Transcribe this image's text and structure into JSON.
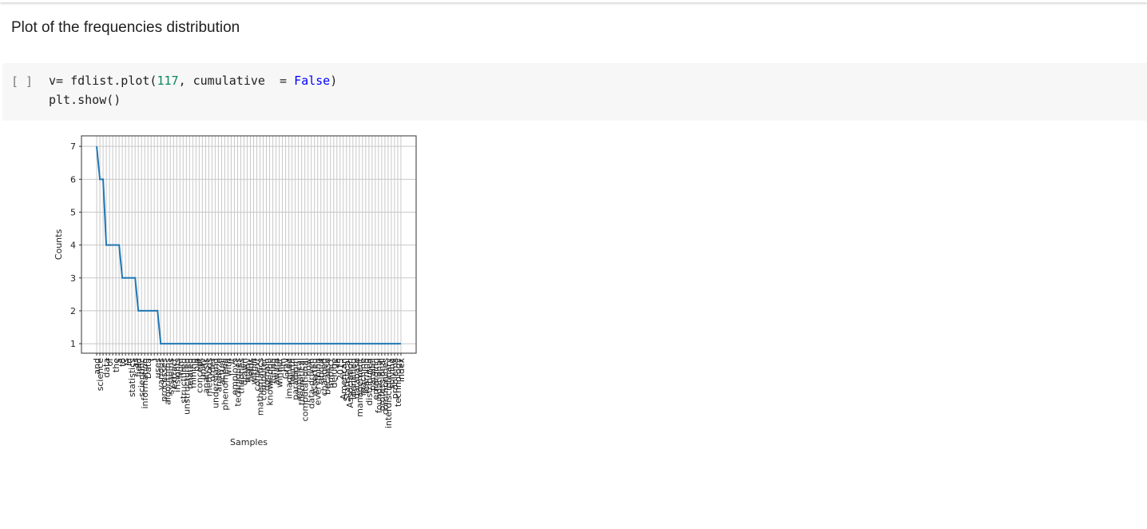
{
  "text_cell": "Plot of the frequencies distribution",
  "code_cell": {
    "prompt": "[ ]",
    "line1": {
      "a": "v= fdlist.plot(",
      "num": "117",
      "b": ", cumulative  = ",
      "kw": "False",
      "c": ")"
    },
    "line2": "plt.show()"
  },
  "chart_data": {
    "type": "line",
    "xlabel": "Samples",
    "ylabel": "Counts",
    "color": "#1f77b4",
    "grid": true,
    "categories": [
      "and",
      "science",
      ",",
      "data",
      "of",
      ".",
      "the",
      "a",
      "to",
      "is",
      "in",
      "statistics",
      "as",
      "field",
      "scientific",
      "information",
      "Data",
      "(",
      ")",
      "uses",
      "various",
      "processes",
      "algorithms",
      "systems",
      "extract",
      "insights",
      "from",
      "structured",
      "unstructured",
      "related",
      "mining",
      "big",
      "concept",
      "unify",
      "analysis",
      "methods",
      "order",
      "understand",
      "analyze",
      "actual",
      "phenomena",
      "with",
      "It",
      "employs",
      "techniques",
      "theories",
      "drawn",
      "many",
      "fields",
      "within",
      "context",
      "mathematics",
      "computer",
      "domain",
      "knowledge",
      "Turing",
      "award",
      "winner",
      "Jim",
      "Gray",
      "imagined",
      "fourth",
      "paradigm",
      "empirical",
      "theoretical",
      "computational",
      "now",
      "data-driven",
      "asserted",
      "everything",
      "about",
      "changed",
      "because",
      "impact",
      "deluge",
      "In",
      "2015",
      "American",
      "Statistical",
      "Association",
      "identified",
      "database",
      "management",
      "machine",
      "learning",
      "distributed",
      "parallel",
      "emerging",
      "foundational",
      "professional",
      "communities",
      "interdisciplinary",
      "solving",
      "problems",
      "technology",
      "index"
    ],
    "values": [
      7,
      6,
      6,
      4,
      4,
      4,
      4,
      4,
      3,
      3,
      3,
      3,
      3,
      2,
      2,
      2,
      2,
      2,
      2,
      2,
      1,
      1,
      1,
      1,
      1,
      1,
      1,
      1,
      1,
      1,
      1,
      1,
      1,
      1,
      1,
      1,
      1,
      1,
      1,
      1,
      1,
      1,
      1,
      1,
      1,
      1,
      1,
      1,
      1,
      1,
      1,
      1,
      1,
      1,
      1,
      1,
      1,
      1,
      1,
      1,
      1,
      1,
      1,
      1,
      1,
      1,
      1,
      1,
      1,
      1,
      1,
      1,
      1,
      1,
      1,
      1,
      1,
      1,
      1,
      1,
      1,
      1,
      1,
      1,
      1,
      1,
      1,
      1,
      1,
      1,
      1,
      1,
      1,
      1,
      1,
      1
    ],
    "xlim": [
      -4.75,
      99.75
    ],
    "ylim": [
      0.71,
      7.32
    ],
    "yticks": [
      1,
      2,
      3,
      4,
      5,
      6,
      7
    ]
  }
}
